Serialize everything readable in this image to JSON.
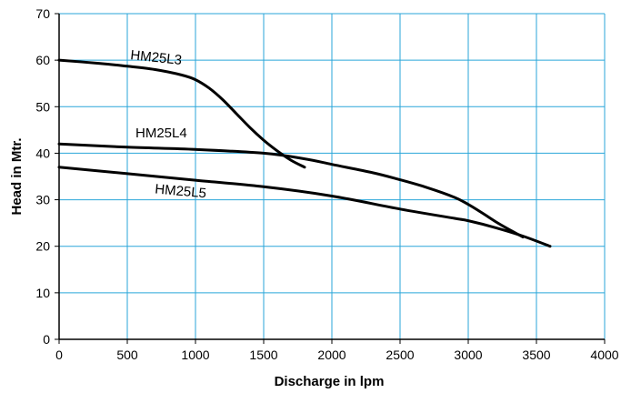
{
  "chart_data": {
    "type": "line",
    "xlabel": "Discharge in lpm",
    "ylabel": "Head in Mtr.",
    "xlim": [
      0,
      4000
    ],
    "ylim": [
      0,
      70
    ],
    "x_ticks": [
      0,
      500,
      1000,
      1500,
      2000,
      2500,
      3000,
      3500,
      4000
    ],
    "y_ticks": [
      0,
      10,
      20,
      30,
      40,
      50,
      60,
      70
    ],
    "grid": true,
    "grid_color": "#2aa6d9",
    "series": [
      {
        "name": "HM25L3",
        "color": "#000000",
        "points": [
          [
            0,
            60
          ],
          [
            300,
            59.3
          ],
          [
            500,
            58.7
          ],
          [
            700,
            58
          ],
          [
            900,
            56.8
          ],
          [
            1000,
            55.8
          ],
          [
            1100,
            54
          ],
          [
            1200,
            51.5
          ],
          [
            1300,
            48.5
          ],
          [
            1400,
            45.5
          ],
          [
            1500,
            42.8
          ],
          [
            1600,
            40.5
          ],
          [
            1700,
            38.5
          ],
          [
            1800,
            37
          ]
        ]
      },
      {
        "name": "HM25L4",
        "color": "#000000",
        "points": [
          [
            0,
            42
          ],
          [
            500,
            41.3
          ],
          [
            1000,
            40.8
          ],
          [
            1500,
            40
          ],
          [
            1800,
            38.8
          ],
          [
            2000,
            37.6
          ],
          [
            2300,
            35.8
          ],
          [
            2500,
            34.3
          ],
          [
            2700,
            32.6
          ],
          [
            2900,
            30.5
          ],
          [
            3000,
            29
          ],
          [
            3100,
            27.2
          ],
          [
            3200,
            25.3
          ],
          [
            3300,
            23.6
          ],
          [
            3400,
            22
          ]
        ]
      },
      {
        "name": "HM25L5",
        "color": "#000000",
        "points": [
          [
            0,
            37
          ],
          [
            500,
            35.6
          ],
          [
            1000,
            34.2
          ],
          [
            1500,
            32.8
          ],
          [
            2000,
            30.8
          ],
          [
            2500,
            28
          ],
          [
            2900,
            26
          ],
          [
            3000,
            25.5
          ],
          [
            3200,
            24
          ],
          [
            3400,
            22.2
          ],
          [
            3600,
            20
          ]
        ]
      }
    ]
  }
}
